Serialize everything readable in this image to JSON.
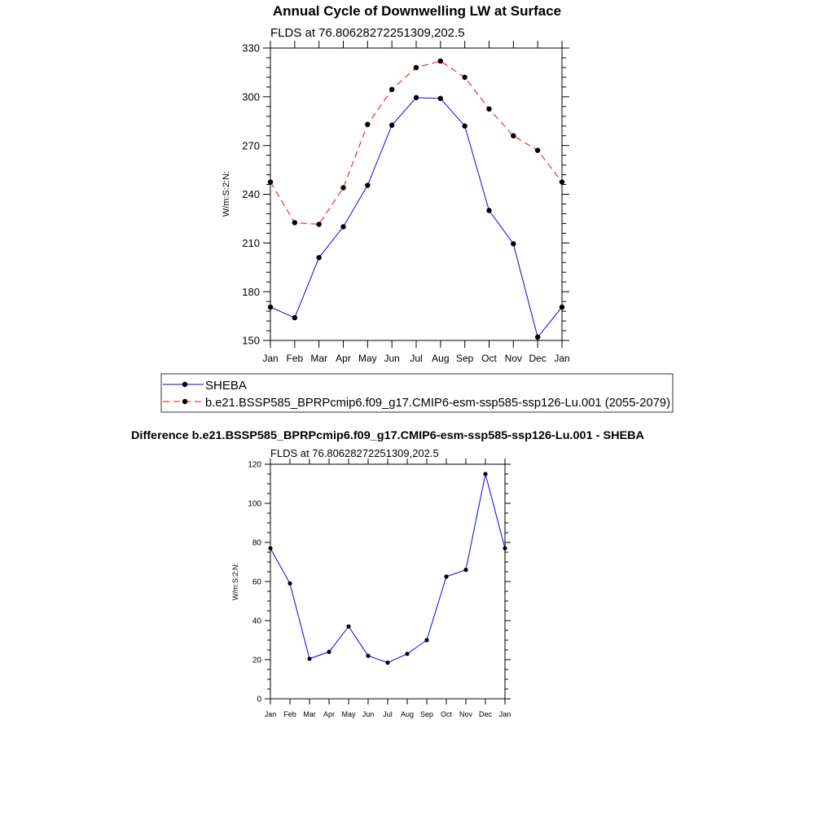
{
  "chart_data": [
    {
      "type": "line",
      "title": "Annual Cycle of Downwelling LW at Surface",
      "subtitle": "FLDS at 76.80628272251309,202.5",
      "ylabel": "W/m:S:2:N:",
      "xlabel": "",
      "ylim": [
        150,
        330
      ],
      "yticks": [
        150,
        180,
        210,
        240,
        270,
        300,
        330
      ],
      "categories": [
        "Jan",
        "Feb",
        "Mar",
        "Apr",
        "May",
        "Jun",
        "Jul",
        "Aug",
        "Sep",
        "Oct",
        "Nov",
        "Dec",
        "Jan"
      ],
      "grid": false,
      "legend_position": "bottom",
      "series": [
        {
          "name": "SHEBA",
          "color": "#0000ff",
          "dash": "solid",
          "values": [
            170.5,
            164,
            201,
            220,
            245.5,
            282.5,
            299.5,
            299,
            282,
            230,
            209.5,
            152,
            170.5
          ]
        },
        {
          "name": "b.e21.BSSP585_BPRPcmip6.f09_g17.CMIP6-esm-ssp585-ssp126-Lu.001 (2055-2079)",
          "color": "#ff0000",
          "dash": "dashed",
          "values": [
            247.5,
            222.5,
            221.5,
            244,
            283,
            304.5,
            318,
            322,
            312,
            292.5,
            276,
            267,
            247.5
          ]
        }
      ]
    },
    {
      "type": "line",
      "title": "Difference b.e21.BSSP585_BPRPcmip6.f09_g17.CMIP6-esm-ssp585-ssp126-Lu.001 - SHEBA",
      "subtitle": "FLDS at 76.80628272251309,202.5",
      "ylabel": "W/m:S:2:N:",
      "xlabel": "",
      "ylim": [
        0,
        120
      ],
      "yticks": [
        0,
        20,
        40,
        60,
        80,
        100,
        120
      ],
      "categories": [
        "Jan",
        "Feb",
        "Mar",
        "Apr",
        "May",
        "Jun",
        "Jul",
        "Aug",
        "Sep",
        "Oct",
        "Nov",
        "Dec",
        "Jan"
      ],
      "grid": false,
      "series": [
        {
          "color": "#0000ff",
          "dash": "solid",
          "values": [
            77,
            59,
            20.5,
            24,
            37,
            22,
            18.5,
            23,
            30,
            62.5,
            66,
            115,
            77
          ]
        }
      ]
    }
  ]
}
